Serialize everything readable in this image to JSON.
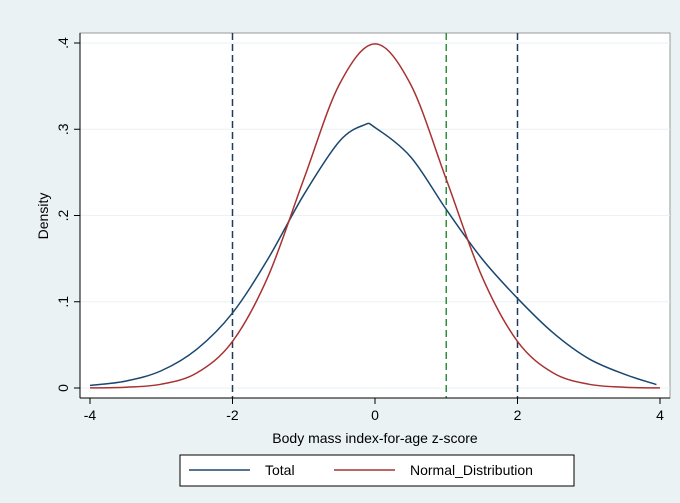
{
  "chart_data": {
    "type": "line",
    "xlabel": "Body mass index-for-age z-score",
    "ylabel": "Density",
    "xlim": [
      -4,
      4
    ],
    "ylim": [
      0,
      0.4
    ],
    "x_ticks": [
      -4,
      -2,
      0,
      2,
      4
    ],
    "x_tick_labels": [
      "-4",
      "-2",
      "0",
      "2",
      "4"
    ],
    "y_ticks": [
      0,
      0.1,
      0.2,
      0.3,
      0.4
    ],
    "y_tick_labels": [
      "0",
      ".1",
      ".2",
      ".3",
      ".4"
    ],
    "grid": "horizontal",
    "legend_position": "bottom",
    "series": [
      {
        "name": "Total",
        "color": "#1a476f",
        "x": [
          -4.0,
          -3.5,
          -3.0,
          -2.5,
          -2.0,
          -1.5,
          -1.0,
          -0.5,
          -0.15,
          0.0,
          0.5,
          1.0,
          1.5,
          2.0,
          2.5,
          3.0,
          3.5,
          3.95
        ],
        "values": [
          0.003,
          0.008,
          0.02,
          0.045,
          0.087,
          0.15,
          0.224,
          0.286,
          0.305,
          0.302,
          0.268,
          0.207,
          0.15,
          0.104,
          0.064,
          0.034,
          0.016,
          0.004
        ]
      },
      {
        "name": "Normal_Distribution",
        "color": "#a83232",
        "x": [
          -4.0,
          -3.5,
          -3.0,
          -2.5,
          -2.0,
          -1.5,
          -1.0,
          -0.5,
          0.0,
          0.5,
          1.0,
          1.5,
          2.0,
          2.5,
          3.0,
          3.5,
          4.0
        ],
        "values": [
          0.0001,
          0.0009,
          0.0044,
          0.0175,
          0.054,
          0.1295,
          0.242,
          0.352,
          0.399,
          0.352,
          0.242,
          0.1295,
          0.054,
          0.0175,
          0.0044,
          0.0009,
          0.0001
        ]
      }
    ],
    "reference_lines": [
      {
        "x": -2,
        "color": "#1f3a5f",
        "style": "dashed"
      },
      {
        "x": 1,
        "color": "#2f8f3a",
        "style": "dashed"
      },
      {
        "x": 2,
        "color": "#1f3a5f",
        "style": "dashed"
      }
    ]
  }
}
